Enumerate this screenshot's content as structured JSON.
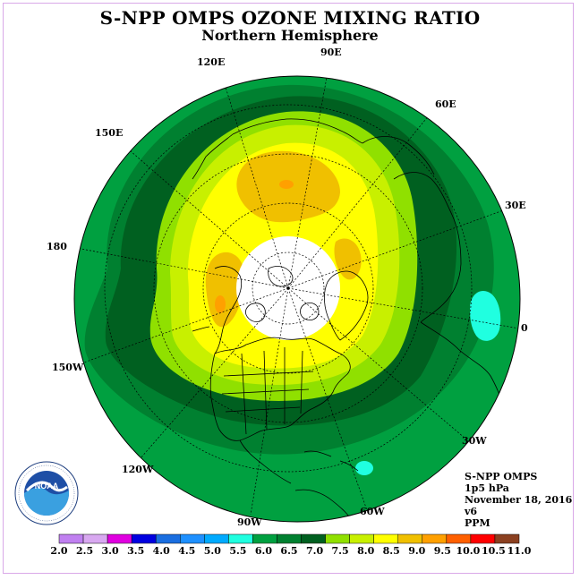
{
  "header": {
    "title": "S-NPP OMPS OZONE MIXING RATIO",
    "subtitle": "Northern Hemisphere"
  },
  "longitude_labels": [
    "90E",
    "60E",
    "30E",
    "0",
    "30W",
    "60W",
    "90W",
    "120W",
    "150W",
    "180",
    "150E",
    "120E"
  ],
  "info": {
    "instrument": "S-NPP OMPS",
    "level": "1p5 hPa",
    "date": "November 18, 2016",
    "version": "v6",
    "units": "PPM"
  },
  "logo": {
    "text": "NOAA",
    "ring_text": "NATIONAL OCEANIC AND ATMOSPHERIC ADMINISTRATION · U.S. DEPARTMENT OF COMMERCE"
  },
  "colorbar": {
    "labels": [
      "2.0",
      "2.5",
      "3.0",
      "3.5",
      "4.0",
      "4.5",
      "5.0",
      "5.5",
      "6.0",
      "6.5",
      "7.0",
      "7.5",
      "8.0",
      "8.5",
      "9.0",
      "9.5",
      "10.0",
      "10.5",
      "11.0"
    ],
    "colors": [
      "#c080f0",
      "#d8a8f0",
      "#e000e0",
      "#0000e0",
      "#1a6ee0",
      "#1e90ff",
      "#00aaff",
      "#20ffe0",
      "#00a040",
      "#008030",
      "#006020",
      "#90e000",
      "#c8f000",
      "#ffff00",
      "#f0c000",
      "#ffa000",
      "#ff6000",
      "#ff0000",
      "#8b4020"
    ]
  },
  "map_colors": {
    "ocean_edge": "#00a040",
    "band_6_5": "#008030",
    "band_7_0": "#006020",
    "band_7_5": "#90e000",
    "band_8_0": "#c8f000",
    "band_8_5": "#ffff00",
    "band_9_0": "#f0c000",
    "band_9_5": "#ffa000",
    "no_data": "#ffffff",
    "spot_5_5": "#20ffe0"
  }
}
